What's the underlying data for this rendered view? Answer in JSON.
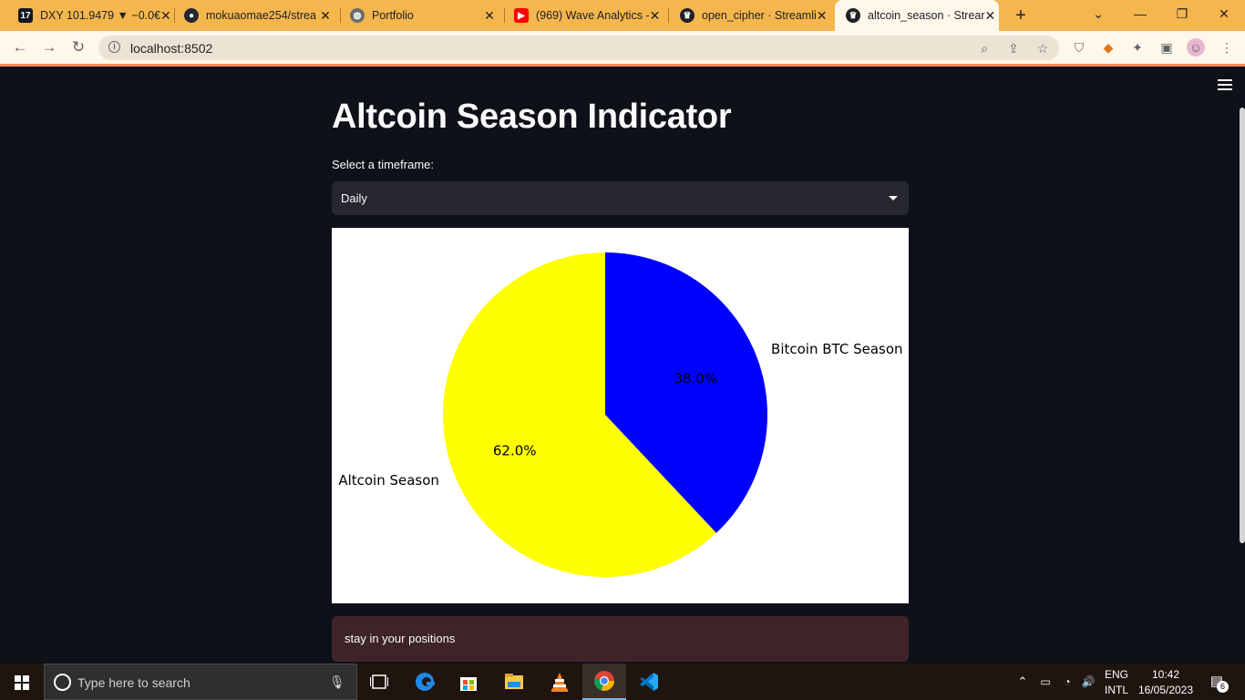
{
  "browser": {
    "tabs": [
      {
        "title": "DXY 101.9479 ▼ −0.0€",
        "icon": "tradingview-icon",
        "active": false
      },
      {
        "title": "mokuaomae254/strea",
        "icon": "github-icon",
        "active": false
      },
      {
        "title": "Portfolio",
        "icon": "globe-icon",
        "active": false
      },
      {
        "title": "(969) Wave Analytics -",
        "icon": "youtube-icon",
        "active": false
      },
      {
        "title": "open_cipher · Streamli",
        "icon": "streamlit-icon",
        "active": false
      },
      {
        "title": "altcoin_season · Strear",
        "icon": "streamlit-icon",
        "active": true
      }
    ],
    "url": "localhost:8502"
  },
  "app": {
    "title": "Altcoin Season Indicator",
    "select_label": "Select a timeframe:",
    "select_value": "Daily",
    "alert_text": "stay in your positions"
  },
  "chart_data": {
    "type": "pie",
    "slices": [
      {
        "label": "Bitcoin BTC Season",
        "value": 38.0,
        "pct_label": "38.0%",
        "color": "#0000ff"
      },
      {
        "label": "Altcoin Season",
        "value": 62.0,
        "pct_label": "62.0%",
        "color": "#ffff00"
      }
    ],
    "start_angle_deg": 90,
    "direction": "clockwise"
  },
  "taskbar": {
    "search_placeholder": "Type here to search",
    "apps": [
      "task-view-icon",
      "edge-icon",
      "store-icon",
      "file-explorer-icon",
      "vlc-icon",
      "chrome-icon",
      "vscode-icon"
    ],
    "lang_line1": "ENG",
    "lang_line2": "INTL",
    "time": "10:42",
    "date": "16/05/2023",
    "notification_count": "6"
  },
  "colors": {
    "app_bg": "#0e1117",
    "tabstrip": "#f5b64d",
    "alert_bg": "#3e2428"
  }
}
